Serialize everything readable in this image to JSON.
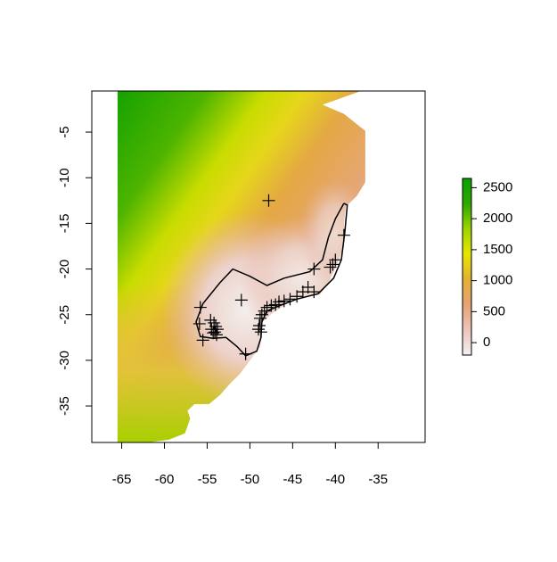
{
  "chart_data": {
    "type": "heatmap",
    "title": "",
    "xlabel": "",
    "ylabel": "",
    "xlim": [
      -68.5,
      -29.5
    ],
    "ylim": [
      -39,
      -0.5
    ],
    "x_ticks": [
      -65,
      -60,
      -55,
      -50,
      -45,
      -40,
      -35
    ],
    "x_tick_labels": [
      "-65",
      "-60",
      "-55",
      "-50",
      "-45",
      "-40",
      "-35"
    ],
    "y_ticks": [
      -5,
      -10,
      -15,
      -20,
      -25,
      -30,
      -35
    ],
    "y_tick_labels": [
      "-5",
      "-10",
      "-15",
      "-20",
      "-25",
      "-30",
      "-35"
    ],
    "legend": {
      "placement": "right",
      "range": [
        -200,
        2650
      ],
      "ticks": [
        0,
        500,
        1000,
        1500,
        2000,
        2500
      ],
      "tick_labels": [
        "0",
        "500",
        "1000",
        "1500",
        "2000",
        "2500"
      ],
      "colors": [
        "#f2f2f2",
        "#ecc4ba",
        "#e6a273",
        "#e2b036",
        "#e6e600",
        "#9fd400",
        "#2ba800",
        "#0da000"
      ]
    },
    "raster_extent": {
      "x": [
        -65.5,
        -36.5
      ],
      "y": [
        -39,
        -0.5
      ]
    },
    "contour": [
      [
        -39.0,
        -12.8
      ],
      [
        -40.0,
        -14.5
      ],
      [
        -40.8,
        -16.5
      ],
      [
        -41.5,
        -19.0
      ],
      [
        -43.0,
        -20.3
      ],
      [
        -46.0,
        -21.0
      ],
      [
        -48.0,
        -21.8
      ],
      [
        -50.0,
        -20.8
      ],
      [
        -52.0,
        -20.0
      ],
      [
        -53.5,
        -21.5
      ],
      [
        -55.5,
        -23.8
      ],
      [
        -56.3,
        -25.8
      ],
      [
        -55.8,
        -27.4
      ],
      [
        -54.3,
        -27.6
      ],
      [
        -52.8,
        -27.5
      ],
      [
        -51.5,
        -28.5
      ],
      [
        -50.5,
        -29.5
      ],
      [
        -49.2,
        -29.0
      ],
      [
        -48.7,
        -27.5
      ],
      [
        -48.6,
        -25.8
      ],
      [
        -48.0,
        -24.6
      ],
      [
        -46.5,
        -24.0
      ],
      [
        -44.5,
        -23.3
      ],
      [
        -42.0,
        -22.7
      ],
      [
        -40.2,
        -21.0
      ],
      [
        -39.3,
        -19.0
      ],
      [
        -38.9,
        -16.0
      ],
      [
        -38.6,
        -13.0
      ],
      [
        -39.0,
        -12.8
      ]
    ],
    "points": [
      [
        -47.8,
        -12.5
      ],
      [
        -39.0,
        -16.3
      ],
      [
        -40.0,
        -19.0
      ],
      [
        -40.3,
        -19.5
      ],
      [
        -40.6,
        -19.8
      ],
      [
        -42.5,
        -20.0
      ],
      [
        -42.5,
        -22.5
      ],
      [
        -43.2,
        -22.0
      ],
      [
        -43.8,
        -22.5
      ],
      [
        -44.5,
        -23.0
      ],
      [
        -45.3,
        -23.3
      ],
      [
        -46.0,
        -23.5
      ],
      [
        -46.6,
        -23.6
      ],
      [
        -47.0,
        -23.9
      ],
      [
        -47.5,
        -24.0
      ],
      [
        -48.0,
        -24.2
      ],
      [
        -48.3,
        -24.6
      ],
      [
        -48.6,
        -25.0
      ],
      [
        -48.8,
        -25.4
      ],
      [
        -48.9,
        -26.2
      ],
      [
        -49.0,
        -26.6
      ],
      [
        -48.7,
        -26.9
      ],
      [
        -51.0,
        -23.4
      ],
      [
        -50.5,
        -29.3
      ],
      [
        -55.8,
        -24.2
      ],
      [
        -55.9,
        -26.0
      ],
      [
        -55.5,
        -27.8
      ],
      [
        -54.6,
        -25.6
      ],
      [
        -54.2,
        -25.9
      ],
      [
        -54.0,
        -26.3
      ],
      [
        -54.5,
        -26.6
      ],
      [
        -54.1,
        -26.9
      ],
      [
        -53.9,
        -27.2
      ],
      [
        -54.3,
        -27.0
      ],
      [
        -53.8,
        -26.6
      ]
    ]
  }
}
